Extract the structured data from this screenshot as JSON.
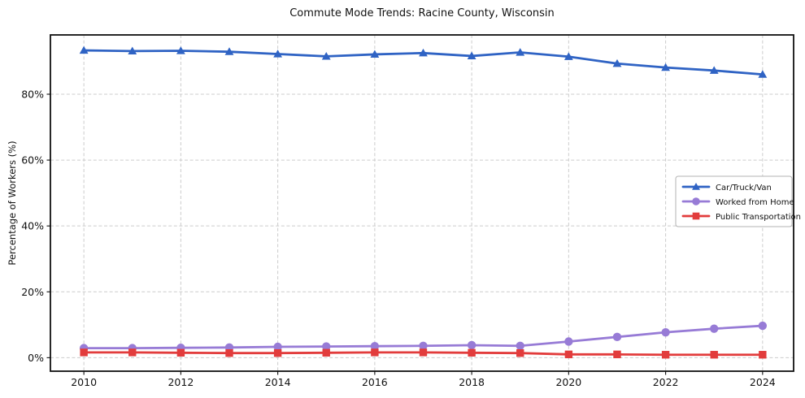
{
  "figure": {
    "title": "Commute Mode Trends: Racine County, Wisconsin",
    "ylabel": "Percentage of Workers (%)"
  },
  "chart_data": {
    "type": "line",
    "title": "Commute Mode Trends: Racine County, Wisconsin",
    "xlabel": "",
    "ylabel": "Percentage of Workers (%)",
    "x": [
      2010,
      2011,
      2012,
      2013,
      2014,
      2015,
      2016,
      2017,
      2018,
      2019,
      2020,
      2021,
      2022,
      2023,
      2024
    ],
    "series": [
      {
        "name": "Car/Truck/Van",
        "color": "#2f63c4",
        "marker": "triangle",
        "values": [
          93.3,
          93.1,
          93.2,
          92.9,
          92.2,
          91.5,
          92.1,
          92.5,
          91.6,
          92.7,
          91.4,
          89.3,
          88.1,
          87.2,
          86.0
        ]
      },
      {
        "name": "Worked from Home",
        "color": "#977bd6",
        "marker": "circle",
        "values": [
          2.9,
          2.9,
          3.0,
          3.1,
          3.3,
          3.4,
          3.5,
          3.6,
          3.8,
          3.6,
          4.9,
          6.3,
          7.7,
          8.8,
          9.7
        ]
      },
      {
        "name": "Public Transportation",
        "color": "#e23c3c",
        "marker": "square",
        "values": [
          1.6,
          1.6,
          1.5,
          1.4,
          1.4,
          1.5,
          1.6,
          1.6,
          1.5,
          1.4,
          1.0,
          1.0,
          0.9,
          0.9,
          0.9
        ]
      }
    ],
    "xticks": [
      2010,
      2012,
      2014,
      2016,
      2018,
      2020,
      2022,
      2024
    ],
    "xtick_labels": [
      "2010",
      "2012",
      "2014",
      "2016",
      "2018",
      "2020",
      "2022",
      "2024"
    ],
    "yticks": [
      0,
      20,
      40,
      60,
      80
    ],
    "ytick_labels": [
      "0%",
      "20%",
      "40%",
      "60%",
      "80%"
    ],
    "xlim": [
      2009.31,
      2024.64
    ],
    "ylim": [
      -4.1,
      98.0
    ],
    "grid": true,
    "grid_color": "#cccccc",
    "frame_color": "#0f0f0f",
    "legend_position": "center-right"
  }
}
